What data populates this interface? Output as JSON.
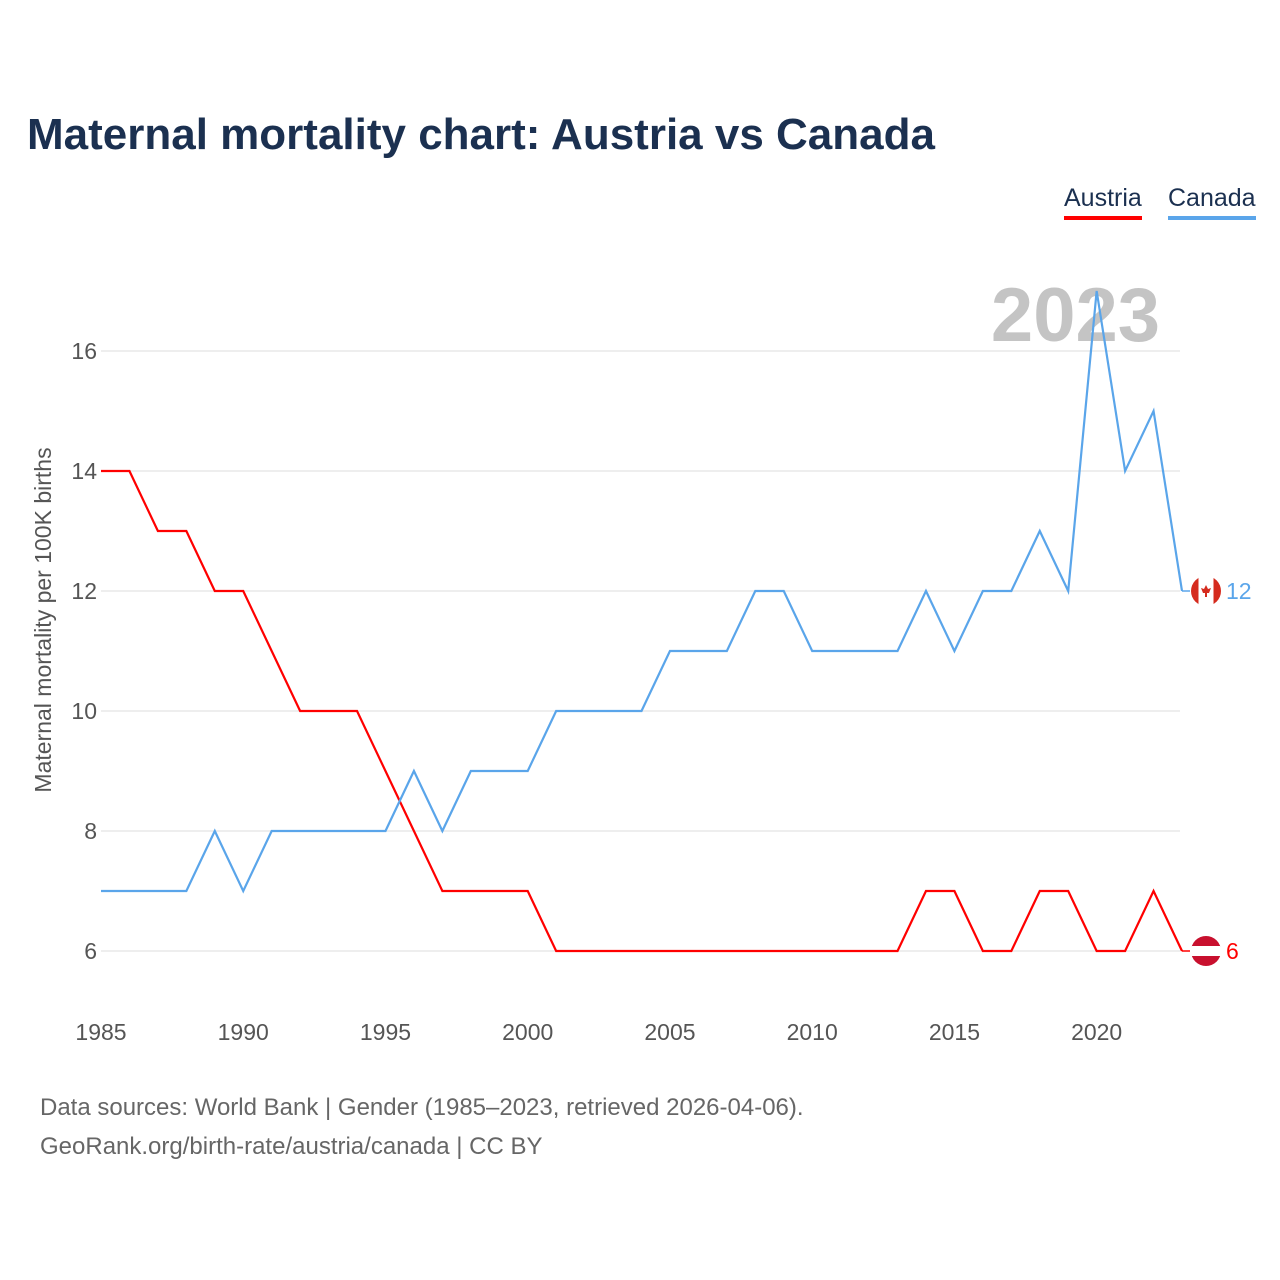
{
  "title": "Maternal mortality chart: Austria vs Canada",
  "footer": {
    "line1": "Data sources: World Bank | Gender (1985–2023, retrieved 2026-04-06).",
    "line2": "GeoRank.org/birth-rate/austria/canada | CC BY"
  },
  "chart_data": {
    "type": "line",
    "title": "Maternal mortality chart: Austria vs Canada",
    "xlabel": "",
    "ylabel": "Maternal mortality per 100K births",
    "year_label": "2023",
    "x": [
      1985,
      1986,
      1987,
      1988,
      1989,
      1990,
      1991,
      1992,
      1993,
      1994,
      1995,
      1996,
      1997,
      1998,
      1999,
      2000,
      2001,
      2002,
      2003,
      2004,
      2005,
      2006,
      2007,
      2008,
      2009,
      2010,
      2011,
      2012,
      2013,
      2014,
      2015,
      2016,
      2017,
      2018,
      2019,
      2020,
      2021,
      2022,
      2023
    ],
    "xlim": [
      1985,
      2023
    ],
    "ylim": [
      5,
      17.5
    ],
    "xticks": [
      "1985",
      "1990",
      "1995",
      "2000",
      "2005",
      "2010",
      "2015",
      "2020"
    ],
    "yticks": [
      "6",
      "8",
      "10",
      "12",
      "14",
      "16"
    ],
    "grid": true,
    "legend_position": "top-right",
    "series": [
      {
        "name": "Austria",
        "color": "#ff0000",
        "end_label": "6",
        "flag": "austria-flag",
        "values": [
          14,
          14,
          13,
          13,
          12,
          12,
          11,
          10,
          10,
          10,
          9,
          8,
          7,
          7,
          7,
          7,
          6,
          6,
          6,
          6,
          6,
          6,
          6,
          6,
          6,
          6,
          6,
          6,
          6,
          7,
          7,
          6,
          6,
          7,
          7,
          6,
          6,
          7,
          6
        ]
      },
      {
        "name": "Canada",
        "color": "#5aa5ea",
        "end_label": "12",
        "flag": "canada-flag",
        "values": [
          7,
          7,
          7,
          7,
          8,
          7,
          8,
          8,
          8,
          8,
          8,
          9,
          8,
          9,
          9,
          9,
          10,
          10,
          10,
          10,
          11,
          11,
          11,
          12,
          12,
          11,
          11,
          11,
          11,
          12,
          11,
          12,
          12,
          13,
          12,
          17,
          14,
          15,
          12
        ]
      }
    ]
  }
}
